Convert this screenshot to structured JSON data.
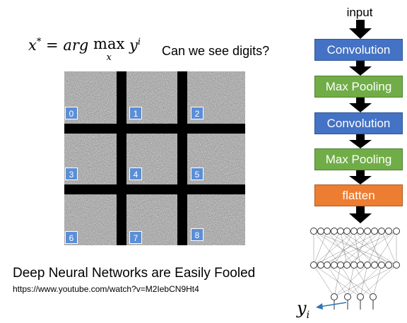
{
  "formula": {
    "lhs": "x",
    "lhs_sup": "*",
    "eq": "=",
    "arg": "arg",
    "max": "max",
    "max_sub": "x",
    "y": "y",
    "y_sup": "i"
  },
  "question": "Can we see digits?",
  "grid": {
    "labels": [
      "0",
      "1",
      "2",
      "3",
      "4",
      "5",
      "6",
      "7",
      "8"
    ]
  },
  "network": {
    "input_label": "input",
    "blocks": [
      {
        "label": "Convolution",
        "kind": "conv"
      },
      {
        "label": "Max Pooling",
        "kind": "pool"
      },
      {
        "label": "Convolution",
        "kind": "conv"
      },
      {
        "label": "Max Pooling",
        "kind": "pool"
      },
      {
        "label": "flatten",
        "kind": "flat"
      }
    ],
    "output": {
      "y": "y",
      "y_sub": "i"
    }
  },
  "caption": "Deep Neural Networks are Easily Fooled",
  "url": "https://www.youtube.com/watch?v=M2IebCN9Ht4",
  "colors": {
    "conv": "#4472c4",
    "pool": "#70ad47",
    "flatten": "#ed7d31",
    "label_box": "#5b8ed6",
    "arrow": "#000000",
    "output_arrow": "#2e75b6"
  }
}
